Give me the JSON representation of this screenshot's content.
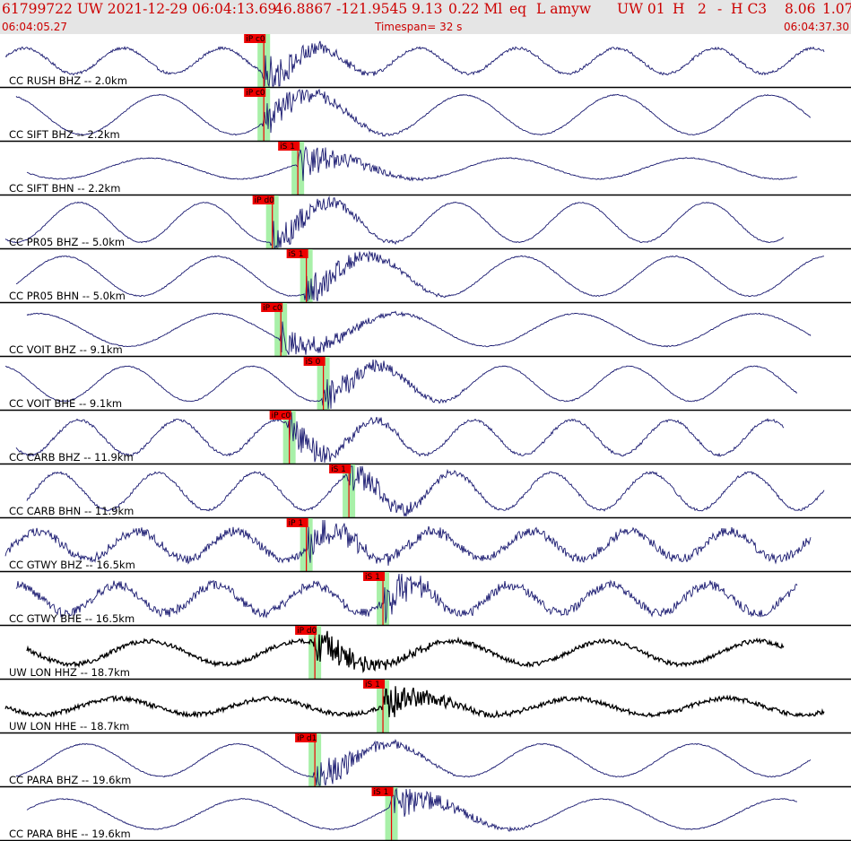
{
  "header": {
    "event_line": [
      "61799722 UW 2021-12-29 06:04:13.69",
      "46.8867 -121.9545",
      "9.13",
      "0.22 Ml",
      "eq",
      "L amyw",
      "UW 01",
      "H",
      "2",
      "-",
      "H C3",
      "8.06",
      "1.07"
    ],
    "start_time": "06:04:05.27",
    "timespan": "Timespan=  32 s",
    "end_time": "06:04:37.30"
  },
  "colors": {
    "header_bg": "#e5e5e5",
    "header_text": "#cc0000",
    "waveform": "#191970",
    "waveform_broadband": "#000000",
    "pick_window": "#a8f0a8",
    "pick_flag": "#ee0000",
    "separator": "#000000"
  },
  "traces": [
    {
      "label": "CC RUSH BHZ -- 2.0km",
      "pick": "iP c0",
      "onset": 0.31,
      "style": "normal",
      "amp": 0.55
    },
    {
      "label": "CC SIFT BHZ -- 2.2km",
      "pick": "iP c0",
      "onset": 0.31,
      "style": "smooth",
      "amp": 0.85
    },
    {
      "label": "CC SIFT BHN -- 2.2km",
      "pick": "iS 1",
      "onset": 0.35,
      "style": "smooth",
      "amp": 0.45
    },
    {
      "label": "CC PR05 BHZ -- 5.0km",
      "pick": "iP d0",
      "onset": 0.32,
      "style": "smooth",
      "amp": 0.85
    },
    {
      "label": "CC PR05 BHN -- 5.0km",
      "pick": "iS 1",
      "onset": 0.36,
      "style": "smooth",
      "amp": 0.85
    },
    {
      "label": "CC VOIT BHZ -- 9.1km",
      "pick": "iP c0",
      "onset": 0.33,
      "style": "smooth",
      "amp": 0.7
    },
    {
      "label": "CC VOIT BHE -- 9.1km",
      "pick": "iS 0",
      "onset": 0.38,
      "style": "smooth",
      "amp": 0.75
    },
    {
      "label": "CC CARB BHZ -- 11.9km",
      "pick": "iP c0",
      "onset": 0.34,
      "style": "normal",
      "amp": 0.75
    },
    {
      "label": "CC CARB BHN -- 11.9km",
      "pick": "iS 1",
      "onset": 0.41,
      "style": "normal",
      "amp": 0.8
    },
    {
      "label": "CC GTWY BHZ -- 16.5km",
      "pick": "iP 1",
      "onset": 0.36,
      "style": "noisy",
      "amp": 0.6
    },
    {
      "label": "CC GTWY BHE -- 16.5km",
      "pick": "iS 1",
      "onset": 0.45,
      "style": "noisy",
      "amp": 0.6
    },
    {
      "label": "UW LON HHZ -- 18.7km",
      "pick": "iP d0",
      "onset": 0.37,
      "style": "broadband",
      "amp": 0.5
    },
    {
      "label": "UW LON HHE -- 18.7km",
      "pick": "iS 1",
      "onset": 0.45,
      "style": "broadband",
      "amp": 0.35
    },
    {
      "label": "CC PARA BHZ -- 19.6km",
      "pick": "iP d1",
      "onset": 0.37,
      "style": "smooth",
      "amp": 0.7
    },
    {
      "label": "CC PARA BHE -- 19.6km",
      "pick": "iS 1",
      "onset": 0.46,
      "style": "smooth",
      "amp": 0.65
    }
  ]
}
